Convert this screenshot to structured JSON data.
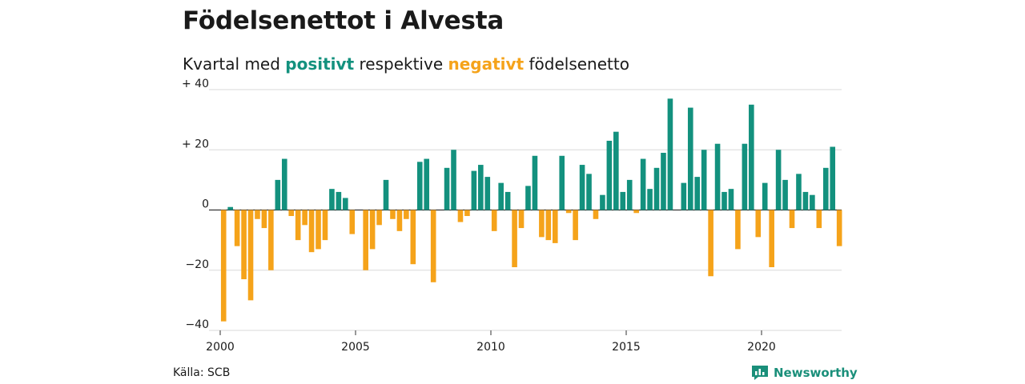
{
  "header": {
    "title": "Födelsenettot i Alvesta",
    "subtitle_before": "Kvartal med",
    "subtitle_positive": "positivt",
    "subtitle_middle": "respektive",
    "subtitle_negative": "negativt",
    "subtitle_after": "födelsenetto"
  },
  "footer": {
    "source": "Källa: SCB",
    "brand": "Newsworthy"
  },
  "colors": {
    "positive": "#13917e",
    "negative": "#f5a31a",
    "grid": "#d9d9d9",
    "axis": "#333333"
  },
  "chart_data": {
    "type": "bar",
    "xlabel": "",
    "ylabel": "",
    "ylim": [
      -40,
      40
    ],
    "yticks": [
      {
        "value": 40,
        "label": "+ 40"
      },
      {
        "value": 20,
        "label": "+ 20"
      },
      {
        "value": 0,
        "label": "0"
      },
      {
        "value": -20,
        "label": "−20"
      },
      {
        "value": -40,
        "label": "−40"
      }
    ],
    "xticks": [
      "2000",
      "2005",
      "2010",
      "2015",
      "2020"
    ],
    "grid": true,
    "legend": "none",
    "start_period": "2000 Q1",
    "values": [
      -37,
      1,
      -12,
      -23,
      -30,
      -3,
      -6,
      -20,
      10,
      17,
      -2,
      -10,
      -5,
      -14,
      -13,
      -10,
      7,
      6,
      4,
      -8,
      0,
      -20,
      -13,
      -5,
      10,
      -3,
      -7,
      -3,
      -18,
      16,
      17,
      -24,
      0,
      14,
      20,
      -4,
      -2,
      13,
      15,
      11,
      -7,
      9,
      6,
      -19,
      -6,
      8,
      18,
      -9,
      -10,
      -11,
      18,
      -1,
      -10,
      15,
      12,
      -3,
      5,
      23,
      26,
      6,
      10,
      -1,
      17,
      7,
      14,
      19,
      37,
      0,
      9,
      34,
      11,
      20,
      -22,
      22,
      6,
      7,
      -13,
      22,
      35,
      -9,
      9,
      -19,
      20,
      10,
      -6,
      12,
      6,
      5,
      -6,
      14,
      21,
      -12
    ]
  }
}
